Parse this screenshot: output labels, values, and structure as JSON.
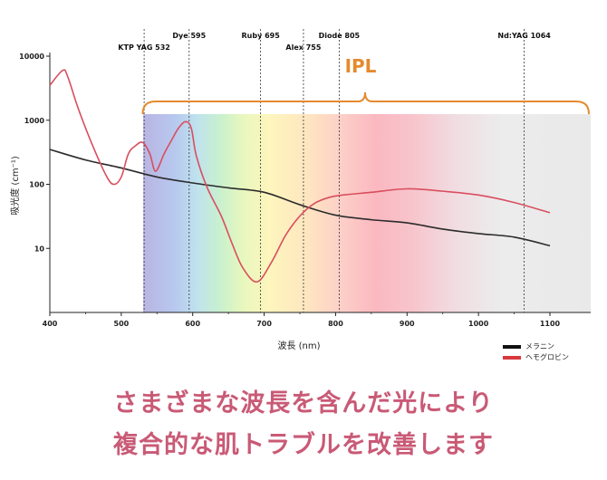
{
  "captions": {
    "line1": "さまざまな波長を含んだ光により",
    "line2": "複合的な肌トラブルを改善します"
  },
  "chart_data": {
    "type": "line",
    "xlabel": "波長 (nm)",
    "ylabel": "吸光度 (cm⁻¹)",
    "xlim": [
      400,
      1100
    ],
    "ylim": [
      1,
      10000
    ],
    "yscale": "log",
    "xticks": [
      400,
      500,
      600,
      700,
      800,
      900,
      1000,
      1100
    ],
    "yticks": [
      {
        "value": 10,
        "label": "10"
      },
      {
        "value": 100,
        "label": "100"
      },
      {
        "value": 1000,
        "label": "1000"
      },
      {
        "value": 10000,
        "label": "10000"
      }
    ],
    "lasers": [
      {
        "label": "KTP YAG 532",
        "x": 532
      },
      {
        "label": "Dye 595",
        "x": 595
      },
      {
        "label": "Ruby 695",
        "x": 695
      },
      {
        "label": "Alex 755",
        "x": 755
      },
      {
        "label": "Diode 805",
        "x": 805
      },
      {
        "label": "Nd:YAG 1064",
        "x": 1064
      }
    ],
    "ipl": {
      "label": "IPL",
      "from": 530,
      "to": 1160,
      "color": "#e58a2e"
    },
    "legend_position": "bottom-right",
    "series": [
      {
        "name": "メラニン",
        "color": "#2b2b2b",
        "x": [
          400,
          450,
          500,
          550,
          600,
          650,
          700,
          750,
          800,
          850,
          900,
          950,
          1000,
          1050,
          1100
        ],
        "y": [
          350,
          240,
          180,
          130,
          105,
          88,
          75,
          48,
          33,
          28,
          25,
          20,
          17,
          15,
          11
        ]
      },
      {
        "name": "ヘモグロビン",
        "color": "#d94f5f",
        "x": [
          400,
          418,
          425,
          440,
          460,
          480,
          490,
          500,
          510,
          520,
          530,
          540,
          548,
          560,
          570,
          580,
          590,
          598,
          605,
          620,
          640,
          655,
          670,
          690,
          710,
          730,
          750,
          770,
          790,
          810,
          850,
          900,
          950,
          1000,
          1050,
          1100
        ],
        "y": [
          3500,
          6000,
          4800,
          1500,
          400,
          130,
          100,
          130,
          300,
          400,
          450,
          300,
          160,
          300,
          480,
          750,
          950,
          750,
          280,
          90,
          32,
          12,
          5,
          3,
          6,
          16,
          32,
          50,
          62,
          68,
          75,
          85,
          78,
          68,
          52,
          36
        ]
      }
    ]
  }
}
